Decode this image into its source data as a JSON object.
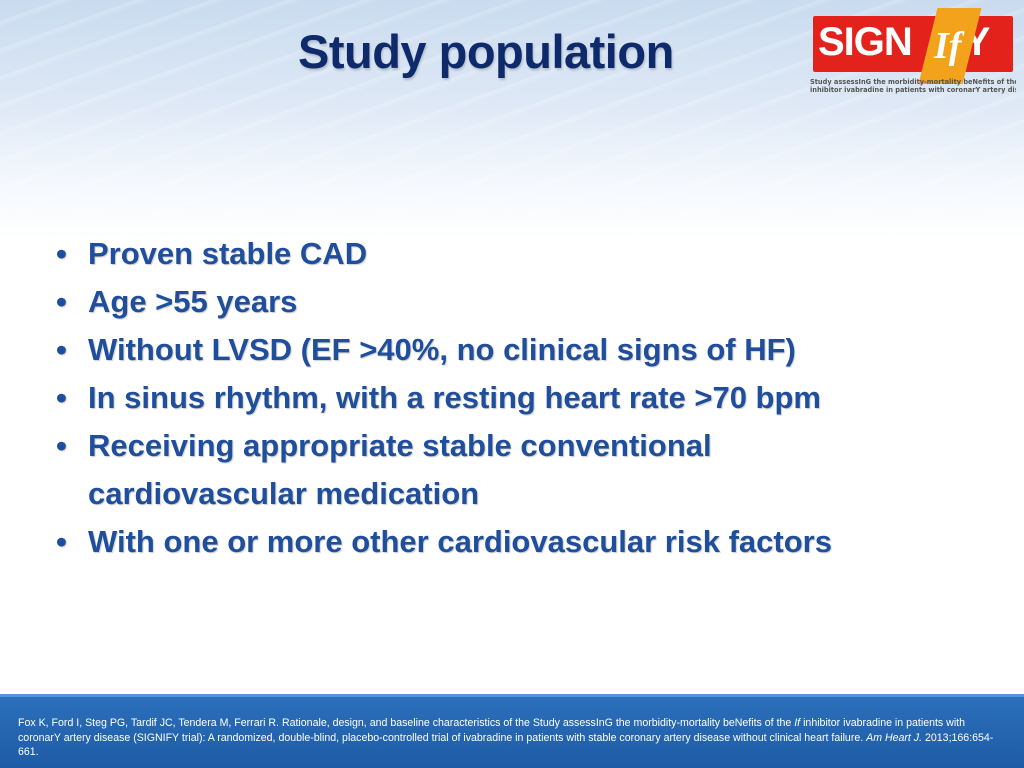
{
  "slide": {
    "title": "Study population",
    "logo": {
      "word_left": "SIGN",
      "word_if": "If",
      "word_right": "Y",
      "tagline_line1": "Study assessInG the morbidity-mortality beNefits of the If",
      "tagline_line2": "inhibitor ivabradine in patients with coronarY artery disease"
    },
    "bullets": [
      "Proven stable CAD",
      "Age >55 years",
      "Without LVSD (EF >40%, no clinical signs of HF)",
      "In sinus rhythm, with a resting heart rate >70 bpm",
      "Receiving appropriate stable conventional cardiovascular medication",
      "With one or more other cardiovascular risk factors"
    ],
    "bullet_glyph": "•",
    "reference": {
      "part1": "Fox K, Ford I, Steg PG, Tardif JC, Tendera M, Ferrari R. Rationale, design, and baseline characteristics of the Study assessInG the morbidity-mortality beNefits of the ",
      "if_symbol": "If",
      "part2": " inhibitor ivabradine in patients with coronarY artery disease (SIGNIFY trial): A randomized, double-blind, placebo-controlled trial of ivabradine in patients with stable coronary artery disease without clinical heart failure. ",
      "journal": "Am Heart J.",
      "citation": " 2013;166:654-661."
    }
  },
  "colors": {
    "title": "#0f2a6b",
    "bullet_text": "#1f4f9c",
    "footer_bg": "#1e5aa5",
    "logo_red": "#e3231b",
    "logo_orange": "#f2a31b"
  }
}
